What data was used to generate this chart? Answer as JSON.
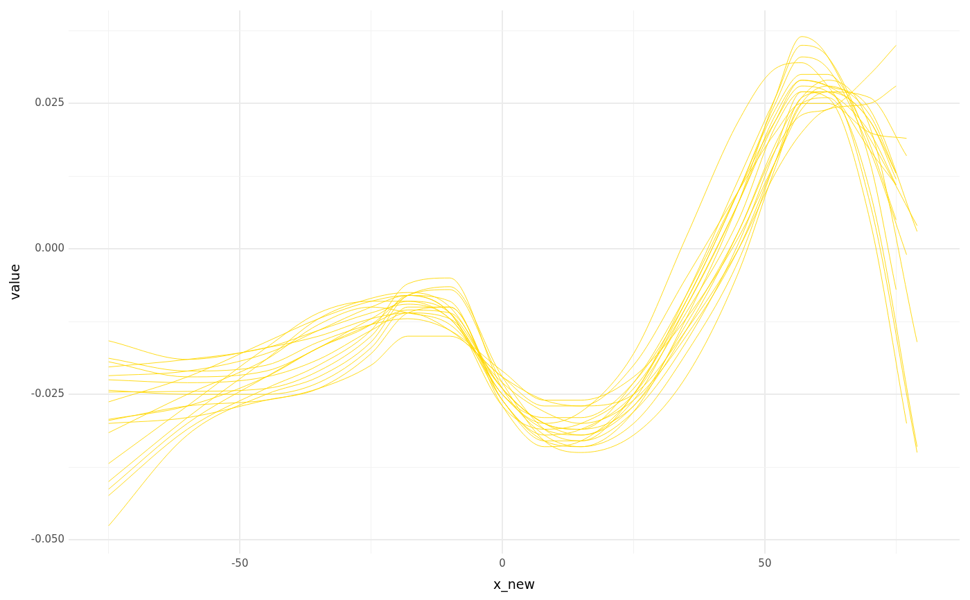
{
  "chart_data": {
    "type": "line",
    "xlabel": "x_new",
    "ylabel": "value",
    "xlim": [
      -82.6,
      87.1
    ],
    "ylim": [
      -0.0524,
      0.041
    ],
    "xticks": [
      {
        "value": -75,
        "label": null
      },
      {
        "value": -50,
        "label": "-50"
      },
      {
        "value": -25,
        "label": null
      },
      {
        "value": 0,
        "label": "0"
      },
      {
        "value": 25,
        "label": null
      },
      {
        "value": 50,
        "label": "50"
      },
      {
        "value": 75,
        "label": null
      }
    ],
    "yticks": [
      {
        "value": -0.05,
        "label": "-0.050"
      },
      {
        "value": -0.0375,
        "label": null
      },
      {
        "value": -0.025,
        "label": "-0.025"
      },
      {
        "value": -0.0125,
        "label": null
      },
      {
        "value": 0,
        "label": "0.000"
      },
      {
        "value": 0.0125,
        "label": null
      },
      {
        "value": 0.025,
        "label": "0.025"
      },
      {
        "value": 0.0375,
        "label": null
      }
    ],
    "grid": true,
    "legend": false,
    "marker": "none",
    "line_style": "solid",
    "series": [
      {
        "color": "#ffd700",
        "x": [
          -75,
          -60,
          -45,
          -35,
          -25,
          -18,
          -10,
          0,
          8,
          15,
          25,
          35,
          45,
          52,
          57,
          62,
          70,
          77
        ],
        "values": [
          -0.0158,
          -0.019,
          -0.017,
          -0.015,
          -0.012,
          -0.011,
          -0.014,
          -0.022,
          -0.027,
          -0.027,
          -0.02,
          -0.005,
          0.01,
          0.02,
          0.025,
          0.025,
          0.02,
          0.019
        ]
      },
      {
        "color": "#ffd700",
        "x": [
          -75,
          -60,
          -45,
          -35,
          -25,
          -18,
          -10,
          0,
          8,
          15,
          25,
          35,
          45,
          52,
          57,
          62,
          70,
          77
        ],
        "values": [
          -0.0188,
          -0.021,
          -0.02,
          -0.016,
          -0.013,
          -0.012,
          -0.014,
          -0.021,
          -0.026,
          -0.026,
          -0.022,
          -0.012,
          0.002,
          0.015,
          0.024,
          0.027,
          0.026,
          0.016
        ]
      },
      {
        "color": "#ffd700",
        "x": [
          -75,
          -60,
          -45,
          -35,
          -25,
          -18,
          -10,
          0,
          8,
          15,
          25,
          35,
          45,
          52,
          57,
          62,
          70,
          75
        ],
        "values": [
          -0.0194,
          -0.022,
          -0.021,
          -0.017,
          -0.012,
          -0.009,
          -0.011,
          -0.024,
          -0.03,
          -0.031,
          -0.023,
          -0.008,
          0.01,
          0.022,
          0.028,
          0.027,
          0.02,
          0.011
        ]
      },
      {
        "color": "#ffd700",
        "x": [
          -75,
          -60,
          -45,
          -35,
          -25,
          -18,
          -10,
          0,
          8,
          15,
          25,
          35,
          45,
          52,
          57,
          62,
          70,
          75
        ],
        "values": [
          -0.0203,
          -0.019,
          -0.017,
          -0.014,
          -0.011,
          -0.0095,
          -0.012,
          -0.025,
          -0.031,
          -0.032,
          -0.026,
          -0.01,
          0.008,
          0.022,
          0.029,
          0.028,
          0.022,
          0.013
        ]
      },
      {
        "color": "#ffd700",
        "x": [
          -75,
          -60,
          -45,
          -35,
          -25,
          -18,
          -10,
          0,
          8,
          15,
          25,
          35,
          45,
          52,
          57,
          62,
          70,
          75
        ],
        "values": [
          -0.0218,
          -0.021,
          -0.018,
          -0.014,
          -0.01,
          -0.008,
          -0.011,
          -0.026,
          -0.033,
          -0.033,
          -0.025,
          -0.008,
          0.012,
          0.026,
          0.035,
          0.033,
          0.018,
          0.005
        ]
      },
      {
        "color": "#ffd700",
        "x": [
          -75,
          -60,
          -45,
          -35,
          -25,
          -18,
          -10,
          0,
          8,
          15,
          25,
          35,
          45,
          52,
          57,
          62,
          70,
          75
        ],
        "values": [
          -0.0243,
          -0.025,
          -0.025,
          -0.023,
          -0.017,
          -0.01,
          -0.01,
          -0.026,
          -0.033,
          -0.034,
          -0.028,
          -0.012,
          0.008,
          0.026,
          0.0365,
          0.033,
          0.015,
          -0.007
        ]
      },
      {
        "color": "#ffd700",
        "x": [
          -75,
          -60,
          -45,
          -35,
          -25,
          -18,
          -10,
          0,
          8,
          15,
          25,
          35,
          45,
          52,
          57,
          62,
          70,
          77
        ],
        "values": [
          -0.0246,
          -0.0245,
          -0.024,
          -0.021,
          -0.015,
          -0.008,
          -0.009,
          -0.027,
          -0.034,
          -0.033,
          -0.025,
          -0.009,
          0.01,
          0.025,
          0.033,
          0.031,
          0.017,
          -0.001
        ]
      },
      {
        "color": "#ffd700",
        "x": [
          -75,
          -60,
          -45,
          -35,
          -25,
          -18,
          -10,
          0,
          8,
          15,
          25,
          35,
          45,
          52,
          57,
          62,
          70,
          79
        ],
        "values": [
          -0.0263,
          -0.022,
          -0.016,
          -0.012,
          -0.009,
          -0.008,
          -0.011,
          -0.027,
          -0.031,
          -0.03,
          -0.024,
          -0.01,
          0.008,
          0.023,
          0.029,
          0.028,
          0.024,
          0.003
        ]
      },
      {
        "color": "#ffd700",
        "x": [
          -75,
          -60,
          -45,
          -35,
          -25,
          -18,
          -10,
          0,
          8,
          15,
          25,
          35,
          45,
          52,
          57,
          62,
          70,
          79
        ],
        "values": [
          -0.0293,
          -0.027,
          -0.022,
          -0.017,
          -0.013,
          -0.0105,
          -0.011,
          -0.025,
          -0.029,
          -0.029,
          -0.023,
          -0.009,
          0.01,
          0.024,
          0.03,
          0.03,
          0.019,
          0.004
        ]
      },
      {
        "color": "#ffd700",
        "x": [
          -75,
          -60,
          -45,
          -35,
          -25,
          -18,
          -10,
          0,
          8,
          15,
          25,
          35,
          45,
          52,
          57,
          62,
          70,
          75
        ],
        "values": [
          -0.03,
          -0.029,
          -0.026,
          -0.024,
          -0.018,
          -0.011,
          -0.01,
          -0.026,
          -0.032,
          -0.031,
          -0.025,
          -0.011,
          0.005,
          0.021,
          0.027,
          0.027,
          0.022,
          0.012
        ]
      },
      {
        "color": "#ffd700",
        "x": [
          -75,
          -60,
          -45,
          -35,
          -25,
          -18,
          -10,
          0,
          8,
          15,
          25,
          35,
          45,
          52,
          57,
          62,
          70,
          75
        ],
        "values": [
          -0.0316,
          -0.025,
          -0.019,
          -0.013,
          -0.01,
          -0.011,
          -0.013,
          -0.023,
          -0.028,
          -0.03,
          -0.026,
          -0.015,
          0.0,
          0.015,
          0.025,
          0.028,
          0.023,
          0.013
        ]
      },
      {
        "color": "#ffd700",
        "x": [
          -75,
          -60,
          -45,
          -35,
          -25,
          -18,
          -10,
          0,
          8,
          15,
          25,
          35,
          45,
          52,
          57,
          62,
          70,
          79
        ],
        "values": [
          -0.0369,
          -0.027,
          -0.017,
          -0.011,
          -0.009,
          -0.009,
          -0.012,
          -0.024,
          -0.03,
          -0.031,
          -0.027,
          -0.014,
          0.003,
          0.018,
          0.026,
          0.029,
          0.021,
          -0.016
        ]
      },
      {
        "color": "#ffd700",
        "x": [
          -75,
          -60,
          -45,
          -35,
          -25,
          -18,
          -10,
          0,
          8,
          15,
          25,
          35,
          45,
          52,
          57,
          62,
          70,
          75
        ],
        "values": [
          -0.04,
          -0.029,
          -0.019,
          -0.012,
          -0.0085,
          -0.0075,
          -0.01,
          -0.024,
          -0.03,
          -0.032,
          -0.027,
          -0.013,
          0.003,
          0.017,
          0.023,
          0.024,
          0.03,
          0.035
        ]
      },
      {
        "color": "#ffd700",
        "x": [
          -75,
          -60,
          -45,
          -35,
          -25,
          -18,
          -10,
          0,
          8,
          15,
          25,
          35,
          45,
          52,
          57,
          62,
          70,
          77
        ],
        "values": [
          -0.0413,
          -0.03,
          -0.022,
          -0.017,
          -0.013,
          -0.008,
          -0.0065,
          -0.022,
          -0.031,
          -0.033,
          -0.028,
          -0.016,
          0.001,
          0.017,
          0.027,
          0.026,
          0.005,
          -0.03
        ]
      },
      {
        "color": "#ffd700",
        "x": [
          -75,
          -60,
          -45,
          -35,
          -25,
          -18,
          -10,
          0,
          8,
          15,
          25,
          35,
          45,
          52,
          57,
          62,
          70,
          79
        ],
        "values": [
          -0.0424,
          -0.031,
          -0.024,
          -0.02,
          -0.014,
          -0.006,
          -0.005,
          -0.024,
          -0.032,
          -0.034,
          -0.03,
          -0.018,
          -0.002,
          0.015,
          0.026,
          0.027,
          0.008,
          -0.035
        ]
      },
      {
        "color": "#ffd700",
        "x": [
          -75,
          -60,
          -45,
          -35,
          -25,
          -18,
          -10,
          0,
          8,
          15,
          25,
          35,
          45,
          52,
          57,
          62,
          70,
          79
        ],
        "values": [
          -0.0476,
          -0.032,
          -0.025,
          -0.022,
          -0.016,
          -0.008,
          -0.007,
          -0.023,
          -0.033,
          -0.035,
          -0.032,
          -0.022,
          -0.004,
          0.014,
          0.025,
          0.026,
          0.01,
          -0.034
        ]
      },
      {
        "color": "#ffd700",
        "x": [
          -75,
          -60,
          -45,
          -35,
          -25,
          -18,
          -10,
          0,
          8,
          15,
          25,
          35,
          45,
          52,
          57,
          62,
          70,
          75
        ],
        "values": [
          -0.0295,
          -0.027,
          -0.026,
          -0.024,
          -0.02,
          -0.015,
          -0.015,
          -0.022,
          -0.026,
          -0.027,
          -0.025,
          -0.014,
          0.0,
          0.013,
          0.02,
          0.024,
          0.025,
          0.028
        ]
      },
      {
        "color": "#ffd700",
        "x": [
          -75,
          -60,
          -45,
          -35,
          -25,
          -18,
          -10,
          0,
          8,
          15,
          25,
          35,
          45,
          52,
          57,
          62,
          70,
          75
        ],
        "values": [
          -0.0225,
          -0.023,
          -0.022,
          -0.019,
          -0.014,
          -0.011,
          -0.012,
          -0.025,
          -0.03,
          -0.028,
          -0.018,
          0.002,
          0.022,
          0.031,
          0.032,
          0.028,
          0.017,
          0.011
        ]
      }
    ]
  }
}
